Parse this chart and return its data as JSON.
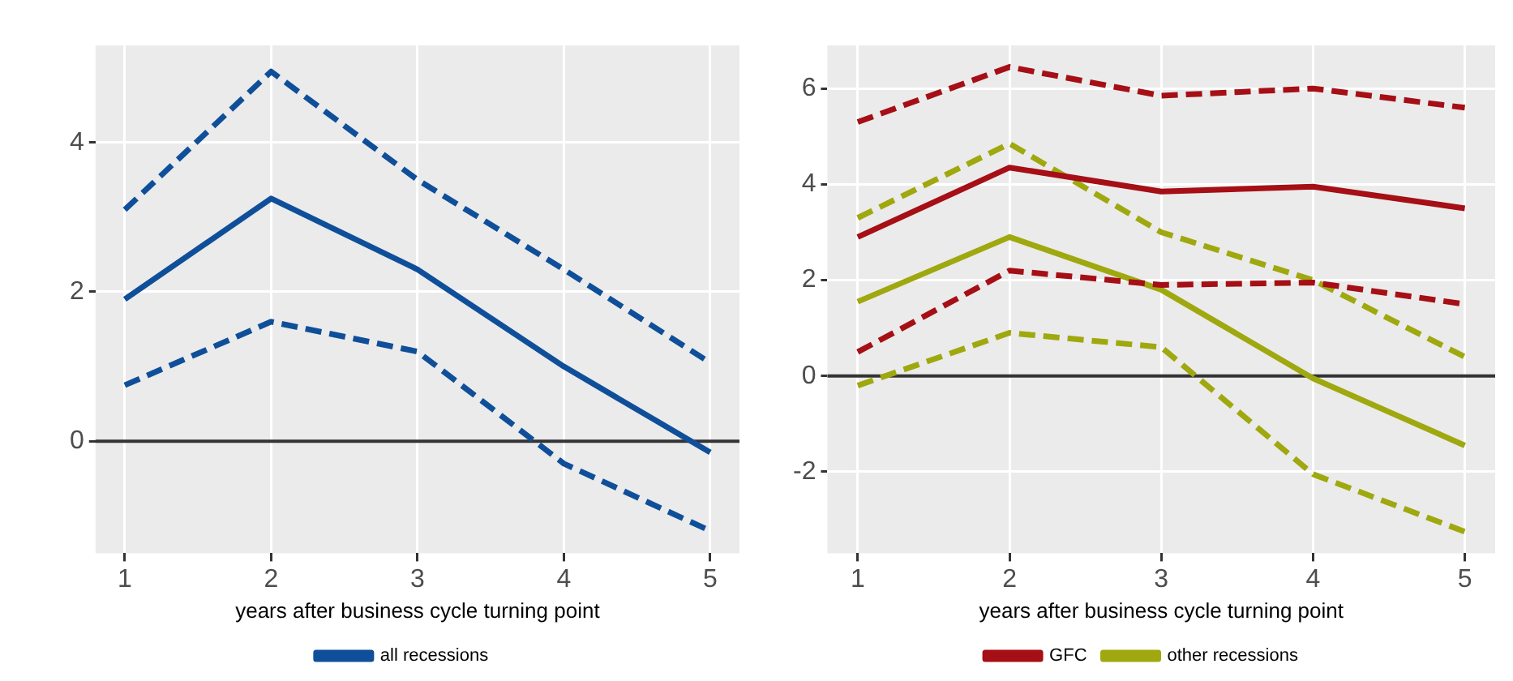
{
  "chart_data": [
    {
      "type": "line",
      "xlabel": "years after business cycle turning point",
      "x": [
        1,
        2,
        3,
        4,
        5
      ],
      "xlim": [
        0.8,
        5.2
      ],
      "xticks": [
        1,
        2,
        3,
        4,
        5
      ],
      "ylim": [
        -1.5,
        5.3
      ],
      "yticks": [
        0,
        2,
        4
      ],
      "grid": true,
      "legend": "bottom",
      "marker": "none",
      "ref_lines": [
        {
          "axis": "y",
          "value": 0,
          "color": "#333333"
        }
      ],
      "series": [
        {
          "name": "all recessions",
          "color": "#0f4f9a",
          "values": [
            1.9,
            3.25,
            2.3,
            1.0,
            -0.15
          ],
          "line_style": "solid"
        },
        {
          "color": "#0f4f9a",
          "values": [
            3.1,
            4.95,
            3.5,
            2.3,
            1.05
          ],
          "line_style": "dashed"
        },
        {
          "color": "#0f4f9a",
          "values": [
            0.75,
            1.6,
            1.2,
            -0.3,
            -1.2
          ],
          "line_style": "dashed"
        }
      ]
    },
    {
      "type": "line",
      "xlabel": "years after business cycle turning point",
      "x": [
        1,
        2,
        3,
        4,
        5
      ],
      "xlim": [
        0.8,
        5.2
      ],
      "xticks": [
        1,
        2,
        3,
        4,
        5
      ],
      "ylim": [
        -3.7,
        6.9
      ],
      "yticks": [
        -2,
        0,
        2,
        4,
        6
      ],
      "grid": true,
      "legend": "bottom",
      "marker": "none",
      "ref_lines": [
        {
          "axis": "y",
          "value": 0,
          "color": "#333333"
        }
      ],
      "series": [
        {
          "name": "GFC",
          "color": "#a50f15",
          "values": [
            2.9,
            4.35,
            3.85,
            3.95,
            3.5
          ],
          "line_style": "solid"
        },
        {
          "color": "#a50f15",
          "values": [
            5.3,
            6.45,
            5.85,
            6.0,
            5.6
          ],
          "line_style": "dashed"
        },
        {
          "color": "#a50f15",
          "values": [
            0.5,
            2.2,
            1.9,
            1.95,
            1.5
          ],
          "line_style": "dashed"
        },
        {
          "name": "other recessions",
          "color": "#9fa80e",
          "values": [
            1.55,
            2.9,
            1.8,
            -0.05,
            -1.45
          ],
          "line_style": "solid"
        },
        {
          "color": "#9fa80e",
          "values": [
            3.3,
            4.85,
            3.0,
            2.0,
            0.4
          ],
          "line_style": "dashed"
        },
        {
          "color": "#9fa80e",
          "values": [
            -0.2,
            0.9,
            0.6,
            -2.05,
            -3.25
          ],
          "line_style": "dashed"
        }
      ]
    }
  ]
}
